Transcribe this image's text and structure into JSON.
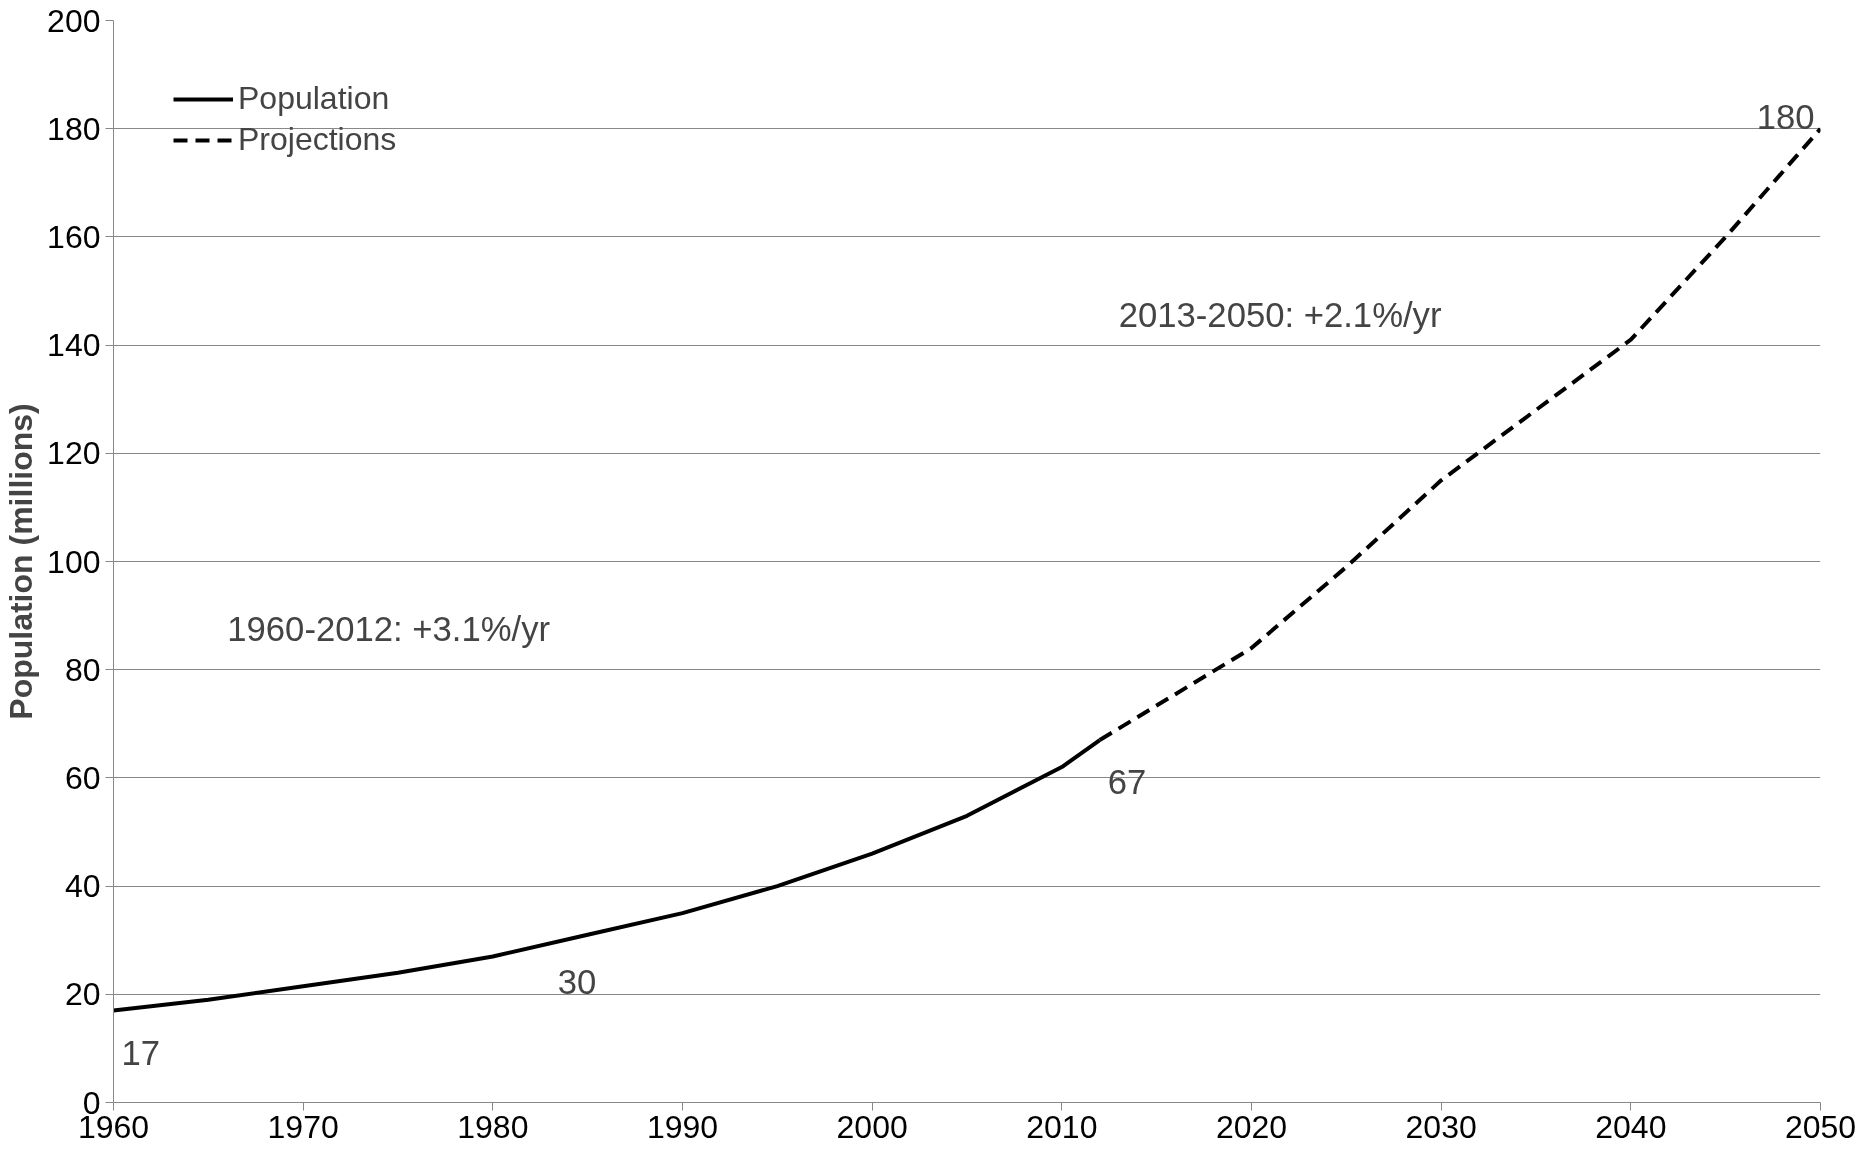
{
  "chart_data": {
    "type": "line",
    "ylabel": "Population (millions)",
    "xlim": [
      1960,
      2050
    ],
    "xticks": [
      1960,
      1970,
      1980,
      1990,
      2000,
      2010,
      2020,
      2030,
      2040,
      2050
    ],
    "ylim": [
      0,
      200
    ],
    "yticks": [
      0,
      20,
      40,
      60,
      80,
      100,
      120,
      140,
      160,
      180,
      200
    ],
    "grid": "y",
    "legend": "top left",
    "marker": "none",
    "series": [
      {
        "name": "Population",
        "color": "#000000",
        "line_style": "solid",
        "x": [
          1960,
          1965,
          1970,
          1975,
          1980,
          1985,
          1990,
          1995,
          2000,
          2005,
          2010,
          2012
        ],
        "values": [
          17,
          19,
          21.5,
          24,
          27,
          31,
          35,
          40,
          46,
          53,
          62,
          67
        ]
      },
      {
        "name": "Projections",
        "color": "#000000",
        "line_style": "dashed",
        "x": [
          2012,
          2020,
          2025,
          2030,
          2035,
          2040,
          2045,
          2050
        ],
        "values": [
          67,
          84,
          99,
          115,
          128,
          141,
          160,
          180
        ]
      }
    ],
    "annotations": [
      {
        "text": "17",
        "x": 1960,
        "y": 17
      },
      {
        "text": "30",
        "x": 1983,
        "y": 30
      },
      {
        "text": "67",
        "x": 2012,
        "y": 67
      },
      {
        "text": "180",
        "x": 2050,
        "y": 180
      },
      "1960-2012: +3.1%/yr",
      "2013-2050: +2.1%/yr"
    ]
  }
}
